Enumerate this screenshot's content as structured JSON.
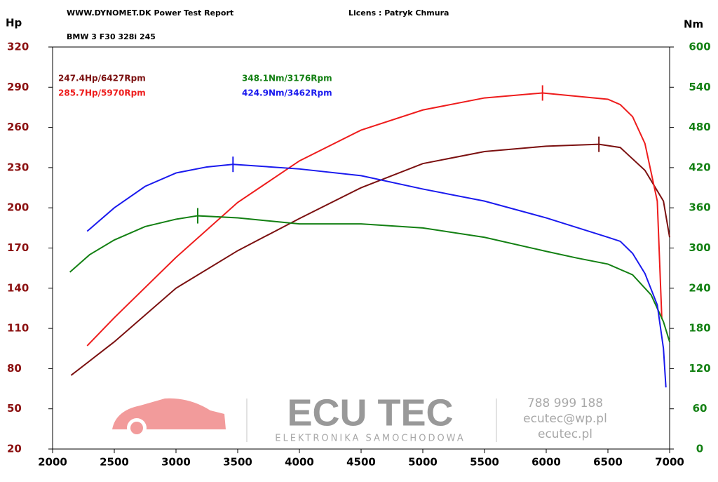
{
  "chart_data": {
    "type": "line",
    "title": "WWW.DYNOMET.DK  Power Test Report",
    "license": "Licens :  Patryk Chmura",
    "subtitle": "BMW 3 F30 328i 245",
    "y_label": "Hp",
    "y2_label": "Nm",
    "xlim": [
      2000,
      7000
    ],
    "xticks": [
      2000,
      2500,
      3000,
      3500,
      4000,
      4500,
      5000,
      5500,
      6000,
      6500,
      7000
    ],
    "ylim": [
      20,
      320
    ],
    "yticks": [
      20,
      50,
      80,
      110,
      140,
      170,
      200,
      230,
      260,
      290,
      320
    ],
    "y2lim": [
      0,
      600
    ],
    "y2ticks": [
      0,
      60,
      120,
      180,
      240,
      300,
      360,
      420,
      480,
      540,
      600
    ],
    "y_color": "#8b1010",
    "y2_color": "#138013",
    "grid": false,
    "series": [
      {
        "name": "247.4Hp/6427Rpm",
        "color": "#7b1010",
        "axis": "y",
        "x": [
          2150,
          2500,
          3000,
          3500,
          4000,
          4500,
          5000,
          5500,
          6000,
          6427,
          6600,
          6800,
          6950,
          7000
        ],
        "values": [
          75,
          100,
          140,
          168,
          192,
          215,
          233,
          242,
          246,
          247.4,
          245,
          228,
          205,
          178
        ]
      },
      {
        "name": "285.7Hp/5970Rpm",
        "color": "#ee1c1c",
        "axis": "y",
        "x": [
          2280,
          2500,
          3000,
          3500,
          4000,
          4500,
          5000,
          5500,
          5970,
          6500,
          6600,
          6700,
          6800,
          6900,
          6937
        ],
        "values": [
          97,
          118,
          163,
          204,
          235,
          258,
          273,
          282,
          285.7,
          281,
          277,
          268,
          248,
          205,
          117
        ]
      },
      {
        "name": "348.1Nm/3176Rpm",
        "color": "#138013",
        "axis": "y2",
        "x": [
          2140,
          2300,
          2500,
          2750,
          3000,
          3176,
          3500,
          4000,
          4500,
          5000,
          5500,
          6000,
          6250,
          6500,
          6700,
          6850,
          6950,
          7000
        ],
        "values": [
          264,
          290,
          312,
          332,
          343,
          348.1,
          345,
          336,
          336,
          330,
          316,
          295,
          285,
          276,
          260,
          230,
          190,
          160
        ]
      },
      {
        "name": "424.9Nm/3462Rpm",
        "color": "#1a1aee",
        "axis": "y2",
        "x": [
          2280,
          2500,
          2750,
          3000,
          3250,
          3462,
          4000,
          4500,
          5000,
          5500,
          6000,
          6500,
          6600,
          6700,
          6800,
          6900,
          6950,
          6970
        ],
        "values": [
          325,
          360,
          392,
          412,
          421,
          424.9,
          418,
          408,
          388,
          370,
          345,
          316,
          310,
          292,
          262,
          215,
          150,
          92
        ]
      }
    ],
    "watermark": {
      "brand": "ECU TEC",
      "tagline": "ELEKTRONIKA SAMOCHODOWA",
      "phone": "788 999 188",
      "email": "ecutec@wp.pl",
      "site": "ecutec.pl"
    }
  }
}
